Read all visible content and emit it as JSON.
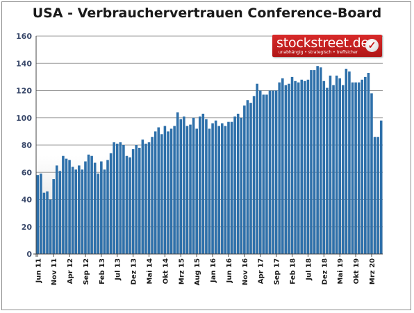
{
  "chart_data": {
    "type": "bar",
    "title": "USA - Verbrauchervertrauen Conference-Board",
    "ylim": [
      0,
      160
    ],
    "yticks": [
      0,
      20,
      40,
      60,
      80,
      100,
      120,
      140,
      160
    ],
    "grid": true,
    "xlabel": "",
    "ylabel": "",
    "x_tick_labels": [
      "Jun 11",
      "Nov 11",
      "Apr 12",
      "Sep 12",
      "Feb 13",
      "Jul 13",
      "Dez 13",
      "Mai 14",
      "Okt 14",
      "Mrz 15",
      "Aug 15",
      "Jan 16",
      "Jun 16",
      "Nov 16",
      "Apr 17",
      "Sep 17",
      "Feb 18",
      "Jul 18",
      "Dez 18",
      "Mai 19",
      "Okt 19",
      "Mrz 20"
    ],
    "tick_every": 5,
    "start_month": "Jun 11",
    "values": [
      58,
      59,
      45,
      46,
      40,
      55,
      65,
      61,
      72,
      70,
      69,
      64,
      62,
      65,
      62,
      68,
      73,
      72,
      67,
      59,
      68,
      62,
      69,
      74,
      82,
      81,
      82,
      80,
      72,
      71,
      77,
      80,
      78,
      84,
      81,
      82,
      86,
      90,
      93,
      88,
      94,
      90,
      92,
      94,
      104,
      99,
      101,
      94,
      95,
      100,
      92,
      101,
      103,
      99,
      92,
      96,
      98,
      94,
      96,
      94,
      97,
      97,
      101,
      103,
      100,
      109,
      113,
      111,
      116,
      125,
      120,
      117,
      117,
      120,
      120,
      120,
      126,
      129,
      124,
      125,
      130,
      127,
      126,
      128,
      127,
      128,
      135,
      135,
      138,
      137,
      127,
      122,
      131,
      124,
      131,
      129,
      124,
      136,
      134,
      126,
      126,
      126,
      128,
      130,
      133,
      118,
      86,
      86,
      98
    ],
    "bar_color": "#2e70aa"
  },
  "logo": {
    "name": "stockstreet.de",
    "slogan": "unabhängig • strategisch • treffsicher",
    "check_icon": "check-circle-icon"
  }
}
